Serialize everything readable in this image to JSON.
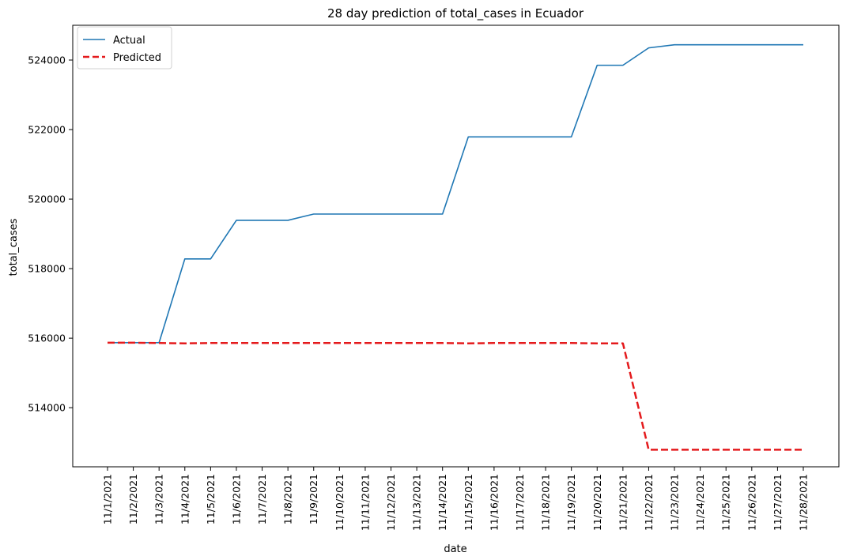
{
  "chart_data": {
    "type": "line",
    "title": "28 day prediction of total_cases in Ecuador",
    "xlabel": "date",
    "ylabel": "total_cases",
    "x": [
      "11/1/2021",
      "11/2/2021",
      "11/3/2021",
      "11/4/2021",
      "11/5/2021",
      "11/6/2021",
      "11/7/2021",
      "11/8/2021",
      "11/9/2021",
      "11/10/2021",
      "11/11/2021",
      "11/12/2021",
      "11/13/2021",
      "11/14/2021",
      "11/15/2021",
      "11/16/2021",
      "11/17/2021",
      "11/18/2021",
      "11/19/2021",
      "11/20/2021",
      "11/21/2021",
      "11/22/2021",
      "11/23/2021",
      "11/24/2021",
      "11/25/2021",
      "11/26/2021",
      "11/27/2021",
      "11/28/2021"
    ],
    "series": [
      {
        "name": "Actual",
        "color": "#1f77b4",
        "style": "solid",
        "values": [
          515870,
          515870,
          515870,
          518280,
          518280,
          519390,
          519390,
          519390,
          519570,
          519570,
          519570,
          519570,
          519570,
          519570,
          521790,
          521790,
          521790,
          521790,
          521790,
          523850,
          523850,
          524350,
          524440,
          524440,
          524440,
          524440,
          524440,
          524440
        ]
      },
      {
        "name": "Predicted",
        "color": "#e41a1c",
        "style": "dashed",
        "values": [
          515870,
          515870,
          515860,
          515850,
          515860,
          515860,
          515860,
          515860,
          515860,
          515860,
          515860,
          515860,
          515860,
          515860,
          515850,
          515860,
          515860,
          515860,
          515860,
          515850,
          515850,
          512790,
          512790,
          512790,
          512790,
          512790,
          512790,
          512790
        ]
      }
    ],
    "yticks": [
      514000,
      516000,
      518000,
      520000,
      522000,
      524000
    ],
    "ylim": [
      512300,
      525000
    ],
    "legend": "top-left",
    "grid": false
  }
}
